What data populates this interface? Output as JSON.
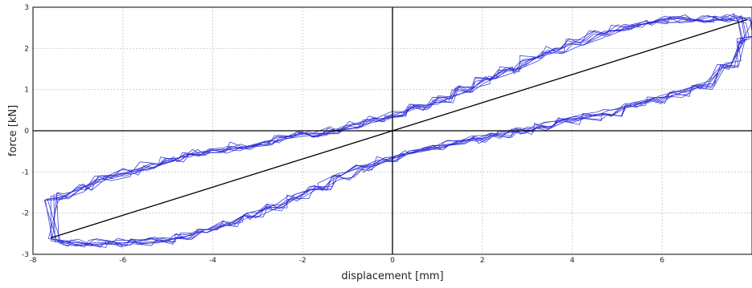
{
  "chart_data": {
    "type": "line",
    "title": "",
    "xlabel": "displacement [mm]",
    "ylabel": "force [kN]",
    "xlim": [
      -8,
      8
    ],
    "ylim": [
      -3,
      3
    ],
    "grid": true,
    "xticks": [
      "-8",
      "-6",
      "-4",
      "-2",
      "0",
      "2",
      "4",
      "6"
    ],
    "yticks": [
      "-3",
      "-2",
      "-1",
      "0",
      "1",
      "2",
      "3"
    ],
    "colors": {
      "loops": "#2b2bd6",
      "secant": "#000000",
      "axes": "#000000",
      "grid": "#c8c8c8"
    },
    "series": [
      {
        "style": "hysteresis-loops",
        "color": "#2b2bd6",
        "upper_branch": {
          "x": [
            -7.6,
            -7.0,
            -6.5,
            -6.0,
            -5.5,
            -5.0,
            -4.5,
            -4.0,
            -3.5,
            -3.0,
            -2.5,
            -2.0,
            -1.5,
            -1.0,
            -0.5,
            0.0,
            0.5,
            1.0,
            1.5,
            2.0,
            2.5,
            3.0,
            3.5,
            4.0,
            4.5,
            5.0,
            5.5,
            6.0,
            6.5,
            7.0,
            7.5,
            7.85
          ],
          "y": [
            -1.6,
            -1.4,
            -1.15,
            -1.0,
            -0.85,
            -0.7,
            -0.55,
            -0.48,
            -0.38,
            -0.3,
            -0.2,
            -0.1,
            0.0,
            0.12,
            0.28,
            0.4,
            0.55,
            0.75,
            1.0,
            1.25,
            1.45,
            1.75,
            1.95,
            2.15,
            2.35,
            2.5,
            2.62,
            2.7,
            2.72,
            2.73,
            2.74,
            2.7
          ]
        },
        "lower_branch": {
          "x": [
            7.9,
            7.6,
            7.0,
            6.5,
            6.0,
            5.5,
            5.0,
            4.5,
            4.0,
            3.5,
            3.0,
            2.5,
            2.0,
            1.5,
            1.0,
            0.5,
            0.0,
            -0.5,
            -1.0,
            -1.5,
            -2.0,
            -2.5,
            -3.0,
            -3.5,
            -4.0,
            -4.5,
            -5.0,
            -5.5,
            -6.0,
            -6.5,
            -7.0,
            -7.5
          ],
          "y": [
            2.2,
            1.6,
            1.1,
            0.9,
            0.75,
            0.6,
            0.45,
            0.35,
            0.25,
            0.12,
            0.0,
            -0.1,
            -0.2,
            -0.3,
            -0.42,
            -0.55,
            -0.7,
            -0.9,
            -1.1,
            -1.35,
            -1.6,
            -1.85,
            -2.05,
            -2.25,
            -2.4,
            -2.55,
            -2.65,
            -2.7,
            -2.72,
            -2.73,
            -2.74,
            -2.7
          ]
        },
        "cycles": 8
      },
      {
        "style": "secant-line",
        "color": "#000000",
        "x": [
          -7.6,
          7.9
        ],
        "y": [
          -2.6,
          2.7
        ]
      }
    ]
  }
}
